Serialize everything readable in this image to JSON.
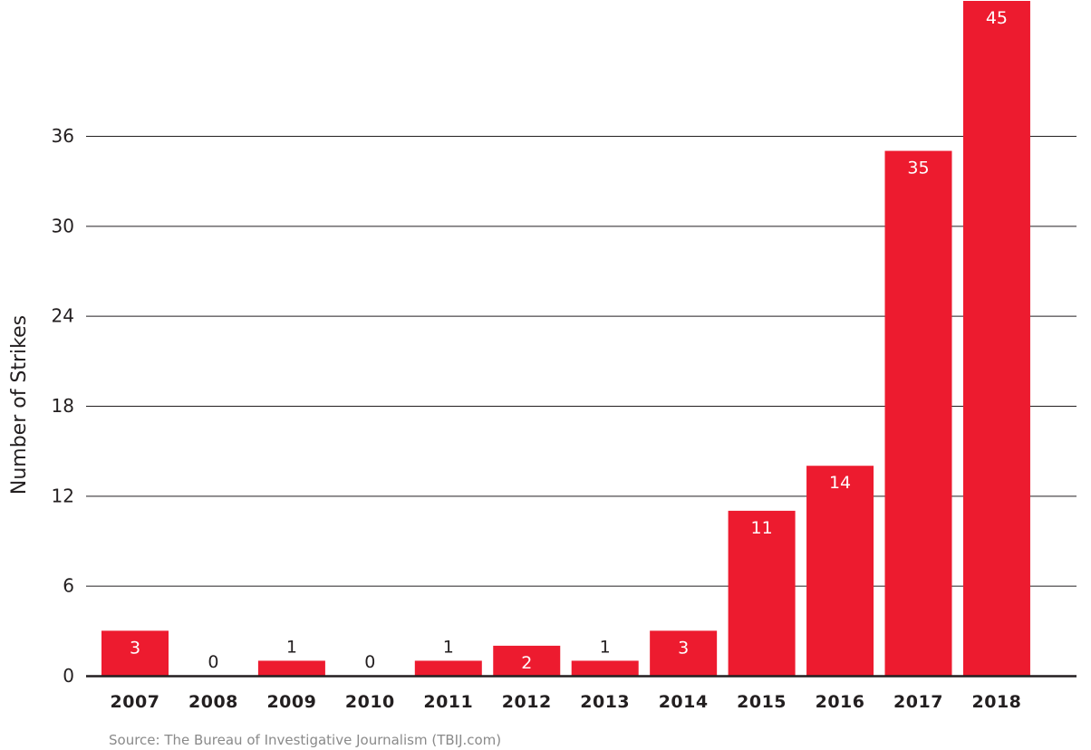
{
  "chart_data": {
    "type": "bar",
    "title": "",
    "xlabel": "",
    "ylabel": "Number of Strikes",
    "categories": [
      "2007",
      "2008",
      "2009",
      "2010",
      "2011",
      "2012",
      "2013",
      "2014",
      "2015",
      "2016",
      "2017",
      "2018"
    ],
    "values": [
      3,
      0,
      1,
      0,
      1,
      2,
      1,
      3,
      11,
      14,
      35,
      45
    ],
    "yticks": [
      0,
      6,
      12,
      18,
      24,
      30,
      36
    ],
    "ylim": [
      0,
      45
    ],
    "grid": true,
    "bar_color": "#ED1B2F",
    "data_labels": true,
    "source": "Source: The Bureau of Investigative Journalism (TBIJ.com)"
  }
}
